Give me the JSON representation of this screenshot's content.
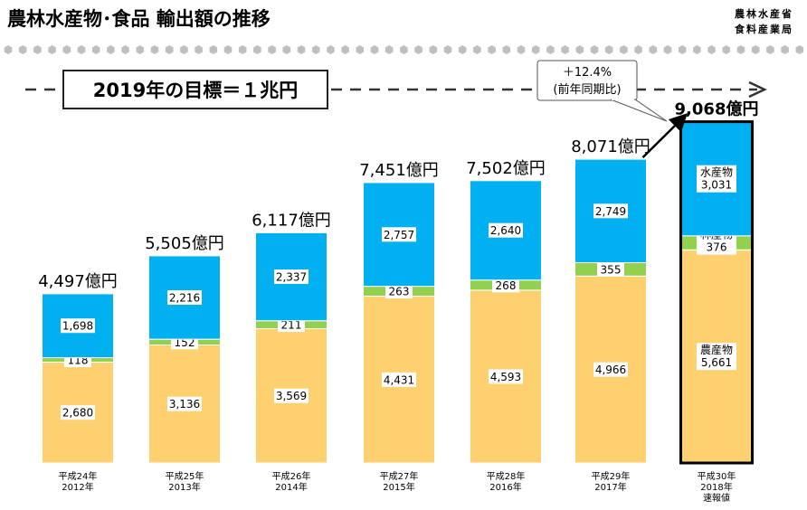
{
  "header": {
    "title": "農林水産物･食品 輸出額の推移",
    "agency_line1": "農林水産省",
    "agency_line2": "食料産業局"
  },
  "goal": {
    "label": "2019年の目標＝１兆円"
  },
  "callout": {
    "line1": "＋12.4%",
    "line2": "(前年同期比)"
  },
  "colors": {
    "fishery": "#00b0f0",
    "forestry": "#92d050",
    "agriculture": "#ffd070",
    "divider": "#ffffff",
    "hex_band": "#bfbfbf"
  },
  "chart_data": {
    "type": "bar",
    "stacked": true,
    "categories": [
      [
        "平成24年",
        "2012年"
      ],
      [
        "平成25年",
        "2013年"
      ],
      [
        "平成26年",
        "2014年"
      ],
      [
        "平成27年",
        "2015年"
      ],
      [
        "平成28年",
        "2016年"
      ],
      [
        "平成29年",
        "2017年"
      ],
      [
        "平成30年",
        "2018年",
        "速報値"
      ]
    ],
    "series": [
      {
        "key": "agriculture",
        "name": "農産物",
        "values": [
          2680,
          3136,
          3569,
          4431,
          4593,
          4966,
          5661
        ]
      },
      {
        "key": "forestry",
        "name": "林産物",
        "values": [
          118,
          152,
          211,
          263,
          268,
          355,
          376
        ]
      },
      {
        "key": "fishery",
        "name": "水産物",
        "values": [
          1698,
          2216,
          2337,
          2757,
          2640,
          2749,
          3031
        ]
      }
    ],
    "value_labels": {
      "agriculture": [
        "2,680",
        "3,136",
        "3,569",
        "4,431",
        "4,593",
        "4,966",
        "5,661"
      ],
      "forestry": [
        "118",
        "152",
        "211",
        "263",
        "268",
        "355",
        "376"
      ],
      "fishery": [
        "1,698",
        "2,216",
        "2,337",
        "2,757",
        "2,640",
        "2,749",
        "3,031"
      ]
    },
    "totals": [
      4497,
      5505,
      6117,
      7451,
      7502,
      8071,
      9068
    ],
    "total_labels": [
      "4,497億円",
      "5,505億円",
      "6,117億円",
      "7,451億円",
      "7,502億円",
      "8,071億円",
      "9,068億円"
    ],
    "highlight_index": 6,
    "target_value": 10000,
    "y_range": [
      0,
      10000
    ],
    "grid": false,
    "legend": "none"
  }
}
